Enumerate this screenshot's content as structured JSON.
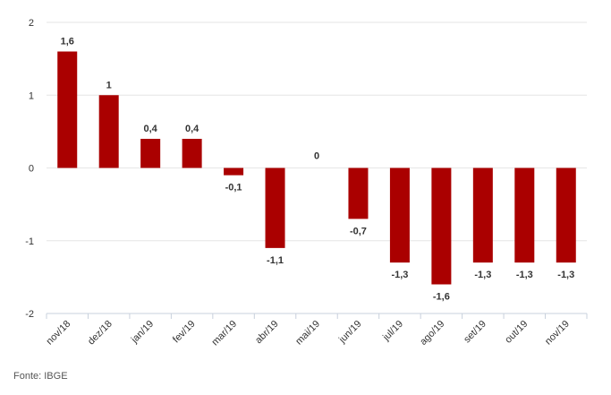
{
  "chart_data": {
    "type": "bar",
    "categories": [
      "nov/18",
      "dez/18",
      "jan/19",
      "fev/19",
      "mar/19",
      "abr/19",
      "mai/19",
      "jun/19",
      "jul/19",
      "ago/19",
      "set/19",
      "out/19",
      "nov/19"
    ],
    "values": [
      1.6,
      1,
      0.4,
      0.4,
      -0.1,
      -1.1,
      0,
      -0.7,
      -1.3,
      -1.6,
      -1.3,
      -1.3,
      -1.3
    ],
    "data_labels": [
      "1,6",
      "1",
      "0,4",
      "0,4",
      "-0,1",
      "-1,1",
      "0",
      "-0,7",
      "-1,3",
      "-1,6",
      "-1,3",
      "-1,3",
      "-1,3"
    ],
    "yticks": [
      2,
      1,
      0,
      -1,
      -2
    ],
    "ylim": [
      -2,
      2
    ],
    "grid": true,
    "bar_color": "#aa0000",
    "title": "",
    "xlabel": "",
    "ylabel": ""
  },
  "source_label": "Fonte: IBGE"
}
